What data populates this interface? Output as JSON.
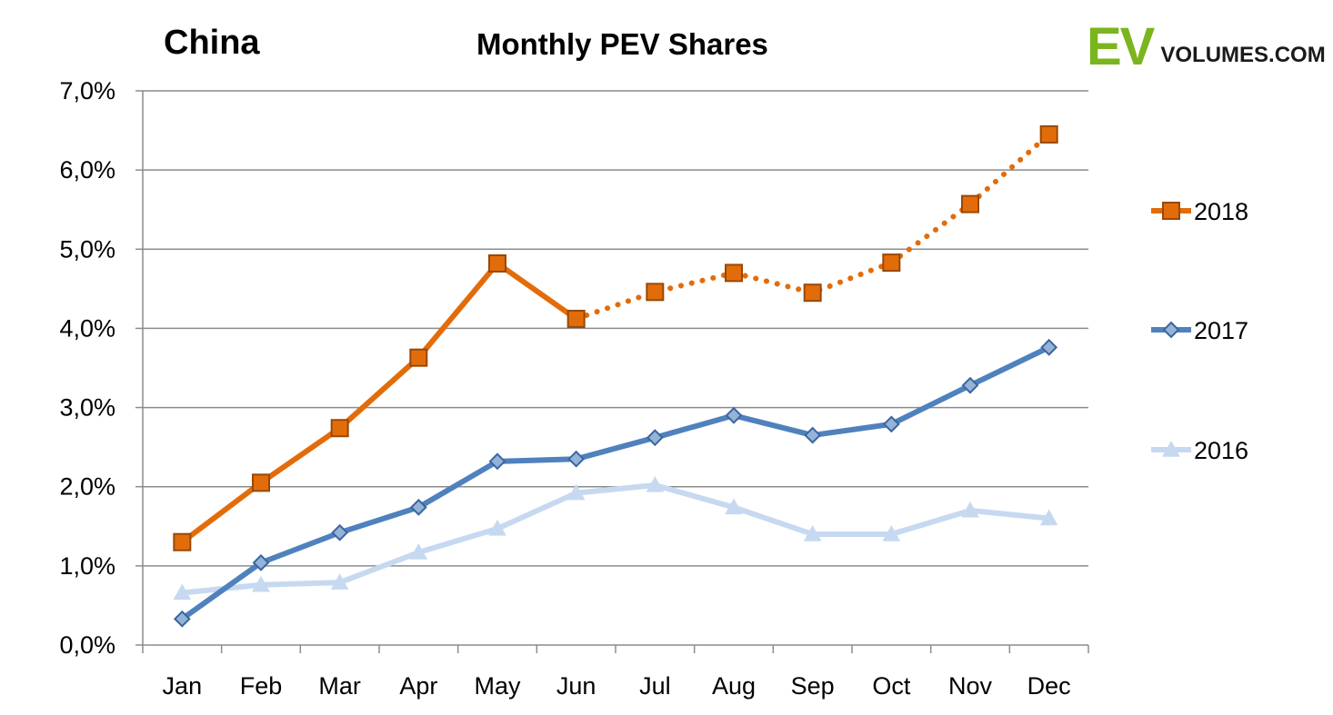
{
  "header": {
    "region": "China",
    "title": "Monthly PEV Shares",
    "logo_ev": "EV",
    "logo_rest": "VOLUMES.COM"
  },
  "chart_data": {
    "type": "line",
    "title": "Monthly PEV Shares",
    "xlabel": "",
    "ylabel": "",
    "categories": [
      "Jan",
      "Feb",
      "Mar",
      "Apr",
      "May",
      "Jun",
      "Jul",
      "Aug",
      "Sep",
      "Oct",
      "Nov",
      "Dec"
    ],
    "ylim": [
      0,
      7
    ],
    "yticks": [
      0,
      1,
      2,
      3,
      4,
      5,
      6,
      7
    ],
    "ytick_labels": [
      "0,0%",
      "1,0%",
      "2,0%",
      "3,0%",
      "4,0%",
      "5,0%",
      "6,0%",
      "7,0%"
    ],
    "grid": true,
    "legend_position": "right",
    "series": [
      {
        "name": "2018",
        "color": "#e36c0a",
        "marker": "square",
        "values": [
          1.3,
          2.05,
          2.74,
          3.63,
          4.82,
          4.12,
          4.46,
          4.7,
          4.45,
          4.83,
          5.57,
          6.45
        ],
        "dotted_from_index": 5
      },
      {
        "name": "2017",
        "color": "#4f81bd",
        "marker": "diamond",
        "values": [
          0.33,
          1.04,
          1.42,
          1.74,
          2.32,
          2.35,
          2.62,
          2.9,
          2.65,
          2.79,
          3.28,
          3.76
        ]
      },
      {
        "name": "2016",
        "color": "#c6d9f1",
        "marker": "triangle",
        "values": [
          0.66,
          0.76,
          0.79,
          1.17,
          1.47,
          1.92,
          2.02,
          1.74,
          1.4,
          1.4,
          1.7,
          1.6
        ]
      }
    ]
  }
}
